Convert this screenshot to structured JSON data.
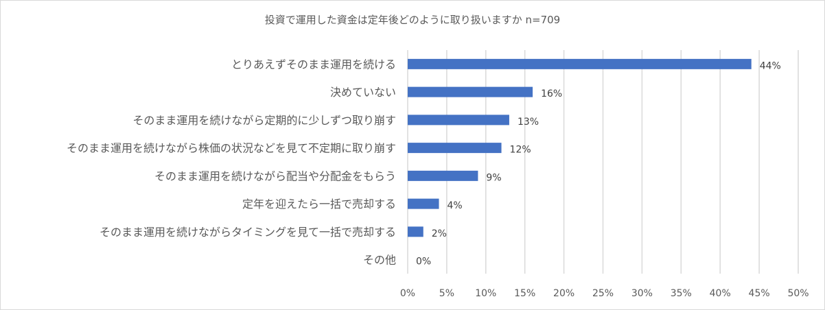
{
  "chart_data": {
    "type": "bar",
    "orientation": "horizontal",
    "title": "投資で運用した資金は定年後どのように取り扱いますか n=709",
    "categories": [
      "とりあえずそのまま運用を続ける",
      "決めていない",
      "そのまま運用を続けながら定期的に少しずつ取り崩す",
      "そのまま運用を続けながら株価の状況などを見て不定期に取り崩す",
      "そのまま運用を続けながら配当や分配金をもらう",
      "定年を迎えたら一括で売却する",
      "そのまま運用を続けながらタイミングを見て一括で売却する",
      "その他"
    ],
    "values": [
      44,
      16,
      13,
      12,
      9,
      4,
      2,
      0
    ],
    "data_labels": [
      "44%",
      "16%",
      "13%",
      "12%",
      "9%",
      "4%",
      "2%",
      "0%"
    ],
    "x_ticks": [
      "0%",
      "5%",
      "10%",
      "15%",
      "20%",
      "25%",
      "30%",
      "35%",
      "40%",
      "45%",
      "50%"
    ],
    "xlim": [
      0,
      50
    ],
    "grid": true,
    "legend": "none",
    "colors": {
      "bar": "#4472c4",
      "grid": "#d9d9d9",
      "text": "#595959"
    }
  }
}
